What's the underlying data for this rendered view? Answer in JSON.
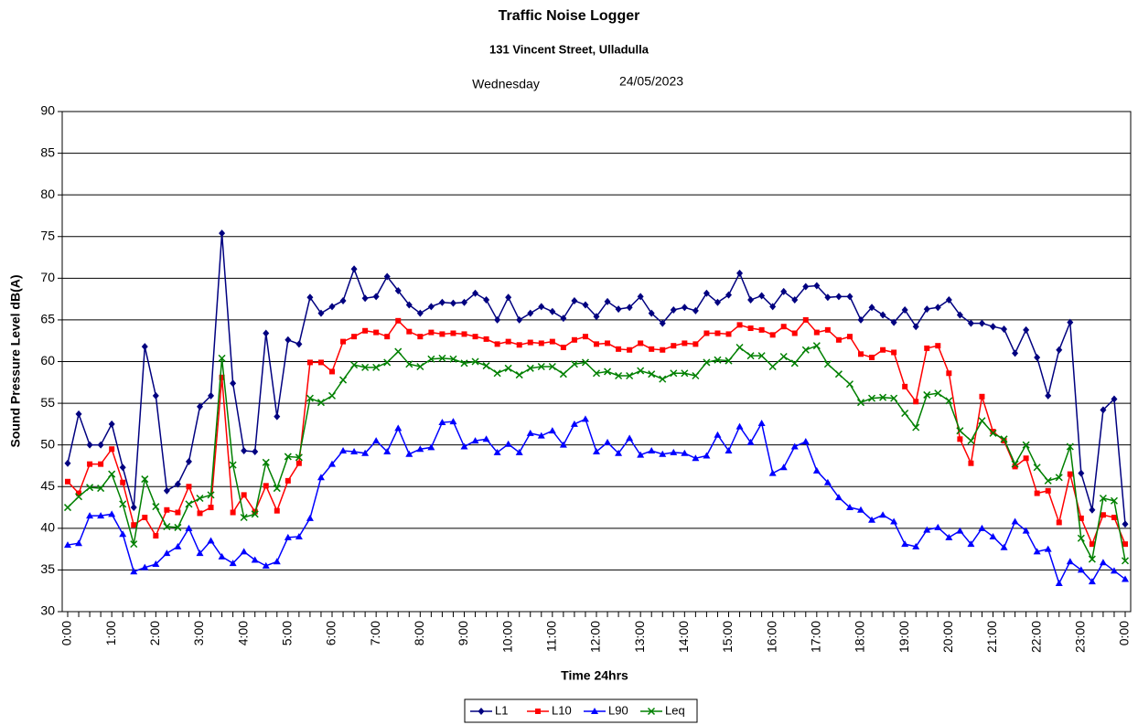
{
  "chart_data": {
    "type": "line",
    "title": "Traffic Noise Logger",
    "subtitle": "131 Vincent Street, Ulladulla",
    "day": "Wednesday",
    "date": "24/05/2023",
    "y_label": "Sound Pressure Level dB(A)",
    "x_label": "Time 24hrs",
    "ylim": [
      30,
      90
    ],
    "yticks": [
      30,
      35,
      40,
      45,
      50,
      55,
      60,
      65,
      70,
      75,
      80,
      85,
      90
    ],
    "grid": true,
    "categories": [
      "0:00",
      null,
      null,
      null,
      "1:00",
      null,
      null,
      null,
      "2:00",
      null,
      null,
      null,
      "3:00",
      null,
      null,
      null,
      "4:00",
      null,
      null,
      null,
      "5:00",
      null,
      null,
      null,
      "6:00",
      null,
      null,
      null,
      "7:00",
      null,
      null,
      null,
      "8:00",
      null,
      null,
      null,
      "9:00",
      null,
      null,
      null,
      "10:00",
      null,
      null,
      null,
      "11:00",
      null,
      null,
      null,
      "12:00",
      null,
      null,
      null,
      "13:00",
      null,
      null,
      null,
      "14:00",
      null,
      null,
      null,
      "15:00",
      null,
      null,
      null,
      "16:00",
      null,
      null,
      null,
      "17:00",
      null,
      null,
      null,
      "18:00",
      null,
      null,
      null,
      "19:00",
      null,
      null,
      null,
      "20:00",
      null,
      null,
      null,
      "21:00",
      null,
      null,
      null,
      "22:00",
      null,
      null,
      null,
      "23:00",
      null,
      null,
      null,
      "0:00"
    ],
    "series": [
      {
        "name": "L1",
        "color": "#000080",
        "marker": "diamond",
        "values": [
          47.8,
          53.7,
          50.0,
          50.0,
          52.5,
          47.3,
          42.5,
          61.8,
          55.9,
          44.5,
          45.3,
          48.0,
          54.6,
          55.9,
          75.4,
          57.4,
          49.3,
          49.2,
          63.4,
          53.4,
          62.6,
          62.1,
          67.7,
          65.8,
          66.6,
          67.3,
          71.1,
          67.6,
          67.8,
          70.2,
          68.5,
          66.8,
          65.8,
          66.6,
          67.1,
          67.0,
          67.1,
          68.2,
          67.4,
          65.0,
          67.7,
          65.0,
          65.8,
          66.6,
          66.0,
          65.2,
          67.3,
          66.8,
          65.4,
          67.2,
          66.3,
          66.5,
          67.8,
          65.8,
          64.6,
          66.2,
          66.5,
          66.1,
          68.2,
          67.1,
          68.0,
          70.6,
          67.4,
          67.9,
          66.6,
          68.4,
          67.4,
          69.0,
          69.1,
          67.7,
          67.8,
          67.8,
          65.0,
          66.5,
          65.6,
          64.7,
          66.2,
          64.2,
          66.3,
          66.5,
          67.4,
          65.6,
          64.6,
          64.6,
          64.2,
          63.9,
          61.0,
          63.8,
          60.5,
          55.9,
          61.4,
          64.7,
          46.6,
          42.2,
          54.2,
          55.5,
          40.5
        ]
      },
      {
        "name": "L10",
        "color": "#ff0000",
        "marker": "square",
        "values": [
          45.6,
          44.2,
          47.7,
          47.7,
          49.5,
          45.5,
          40.4,
          41.3,
          39.1,
          42.2,
          41.9,
          45.0,
          41.8,
          42.5,
          58.1,
          41.9,
          44.0,
          42.0,
          45.1,
          42.1,
          45.7,
          47.8,
          59.9,
          59.9,
          58.8,
          62.4,
          63.0,
          63.7,
          63.5,
          63.0,
          64.9,
          63.6,
          63.0,
          63.5,
          63.3,
          63.4,
          63.3,
          63.0,
          62.7,
          62.1,
          62.4,
          62.0,
          62.3,
          62.2,
          62.4,
          61.7,
          62.6,
          63.0,
          62.1,
          62.2,
          61.5,
          61.4,
          62.2,
          61.5,
          61.4,
          61.9,
          62.2,
          62.1,
          63.4,
          63.4,
          63.3,
          64.4,
          64.0,
          63.8,
          63.2,
          64.2,
          63.4,
          65.0,
          63.5,
          63.8,
          62.6,
          63.0,
          60.9,
          60.5,
          61.4,
          61.1,
          57.0,
          55.2,
          61.6,
          61.9,
          58.6,
          50.7,
          47.8,
          55.8,
          51.6,
          50.5,
          47.4,
          48.4,
          44.2,
          44.5,
          40.7,
          46.5,
          41.2,
          38.1,
          41.6,
          41.3,
          38.1
        ]
      },
      {
        "name": "L90",
        "color": "#0000ff",
        "marker": "triangle",
        "values": [
          38.0,
          38.2,
          41.5,
          41.5,
          41.7,
          39.3,
          34.8,
          35.3,
          35.7,
          37.0,
          37.8,
          40.0,
          37.0,
          38.5,
          36.6,
          35.8,
          37.2,
          36.2,
          35.5,
          36.0,
          38.9,
          39.0,
          41.2,
          46.1,
          47.7,
          49.3,
          49.2,
          49.0,
          50.5,
          49.2,
          52.0,
          48.9,
          49.5,
          49.7,
          52.7,
          52.8,
          49.8,
          50.5,
          50.7,
          49.1,
          50.1,
          49.1,
          51.4,
          51.1,
          51.7,
          50.0,
          52.5,
          53.1,
          49.2,
          50.3,
          49.0,
          50.8,
          48.8,
          49.3,
          48.9,
          49.1,
          49.0,
          48.4,
          48.7,
          51.2,
          49.3,
          52.2,
          50.3,
          52.6,
          46.6,
          47.3,
          49.8,
          50.4,
          46.9,
          45.5,
          43.7,
          42.5,
          42.2,
          41.0,
          41.6,
          40.8,
          38.1,
          37.8,
          39.8,
          40.1,
          38.9,
          39.7,
          38.1,
          40.0,
          39.0,
          37.7,
          40.8,
          39.7,
          37.2,
          37.5,
          33.4,
          36.0,
          35.0,
          33.6,
          35.9,
          34.9,
          33.9
        ]
      },
      {
        "name": "Leq",
        "color": "#008000",
        "marker": "x",
        "values": [
          42.5,
          43.8,
          44.9,
          44.8,
          46.5,
          42.9,
          38.1,
          45.9,
          42.6,
          40.2,
          40.1,
          42.9,
          43.6,
          44.0,
          60.4,
          47.6,
          41.3,
          41.7,
          47.9,
          44.8,
          48.6,
          48.5,
          55.6,
          55.1,
          55.9,
          57.8,
          59.6,
          59.3,
          59.3,
          59.9,
          61.2,
          59.7,
          59.4,
          60.3,
          60.4,
          60.3,
          59.8,
          60.0,
          59.5,
          58.6,
          59.2,
          58.4,
          59.2,
          59.4,
          59.4,
          58.5,
          59.7,
          59.9,
          58.6,
          58.8,
          58.3,
          58.3,
          58.9,
          58.5,
          57.9,
          58.6,
          58.6,
          58.3,
          59.9,
          60.2,
          60.1,
          61.7,
          60.7,
          60.7,
          59.4,
          60.6,
          59.8,
          61.4,
          61.9,
          59.7,
          58.5,
          57.3,
          55.1,
          55.6,
          55.7,
          55.6,
          53.8,
          52.1,
          56.0,
          56.2,
          55.3,
          51.7,
          50.5,
          52.9,
          51.4,
          50.7,
          47.7,
          50.0,
          47.3,
          45.7,
          46.1,
          49.8,
          38.8,
          36.3,
          43.6,
          43.3,
          36.1
        ]
      }
    ]
  }
}
